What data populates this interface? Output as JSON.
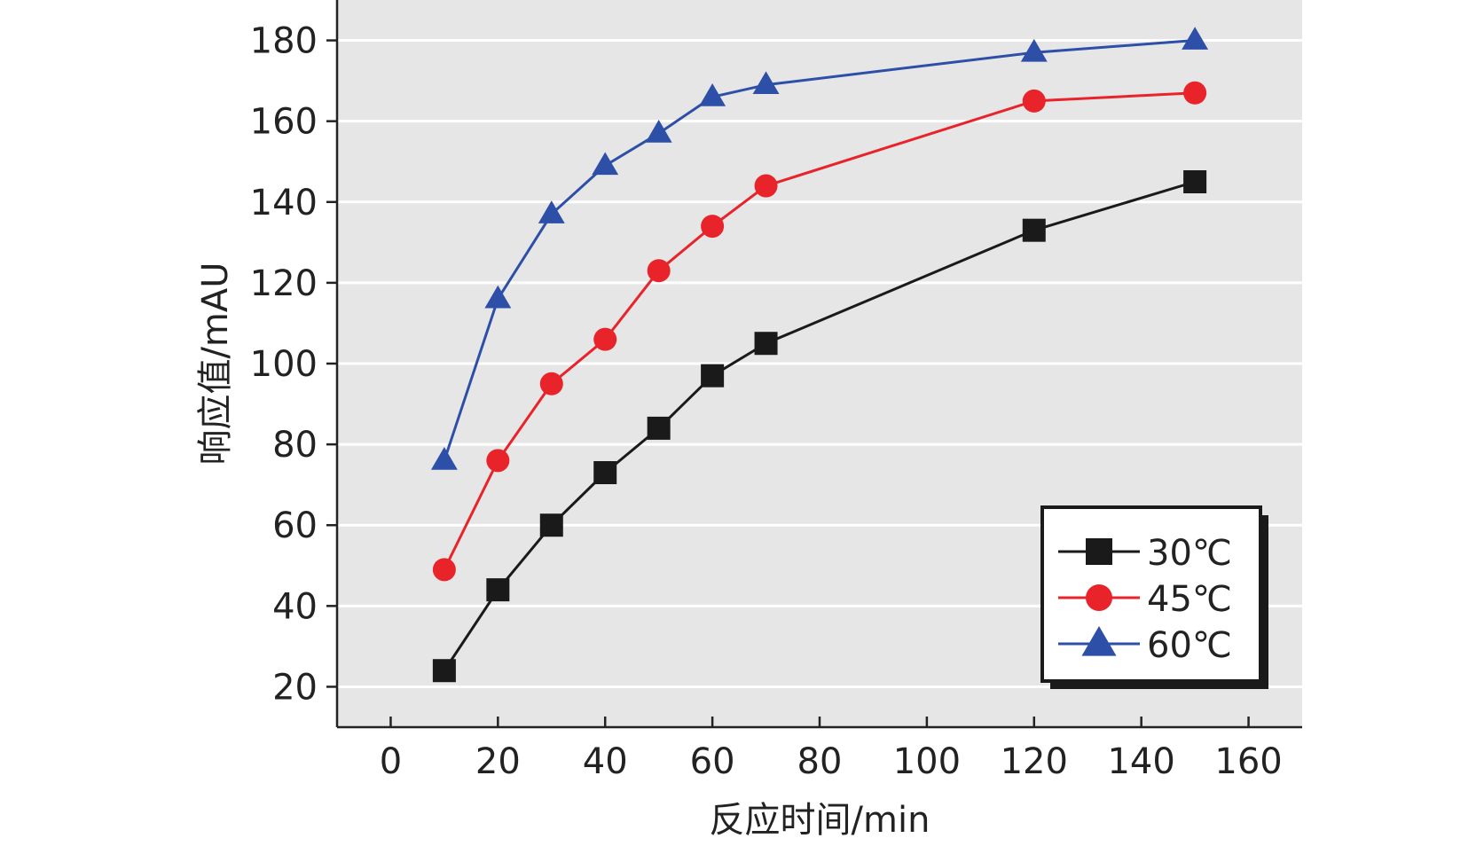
{
  "chart_data": {
    "type": "line",
    "xlabel": "反应时间/min",
    "ylabel": "响应值/mAU",
    "xlim": [
      -10,
      170
    ],
    "ylim": [
      10,
      190
    ],
    "x_ticks": [
      0,
      20,
      40,
      60,
      80,
      100,
      120,
      140,
      160
    ],
    "y_ticks": [
      20,
      40,
      60,
      80,
      100,
      120,
      140,
      160,
      180
    ],
    "grid": true,
    "legend_position": "bottom-right",
    "x": [
      10,
      20,
      30,
      40,
      50,
      60,
      70,
      120,
      150
    ],
    "series": [
      {
        "name": "30℃",
        "color": "#1a1a1a",
        "marker": "square",
        "values": [
          24,
          44,
          60,
          73,
          84,
          97,
          105,
          133,
          145
        ]
      },
      {
        "name": "45℃",
        "color": "#e8232a",
        "marker": "circle",
        "values": [
          49,
          76,
          95,
          106,
          123,
          134,
          144,
          165,
          167
        ]
      },
      {
        "name": "60℃",
        "color": "#2e4fa8",
        "marker": "triangle",
        "values": [
          76,
          116,
          137,
          149,
          157,
          166,
          169,
          177,
          180
        ]
      }
    ]
  }
}
